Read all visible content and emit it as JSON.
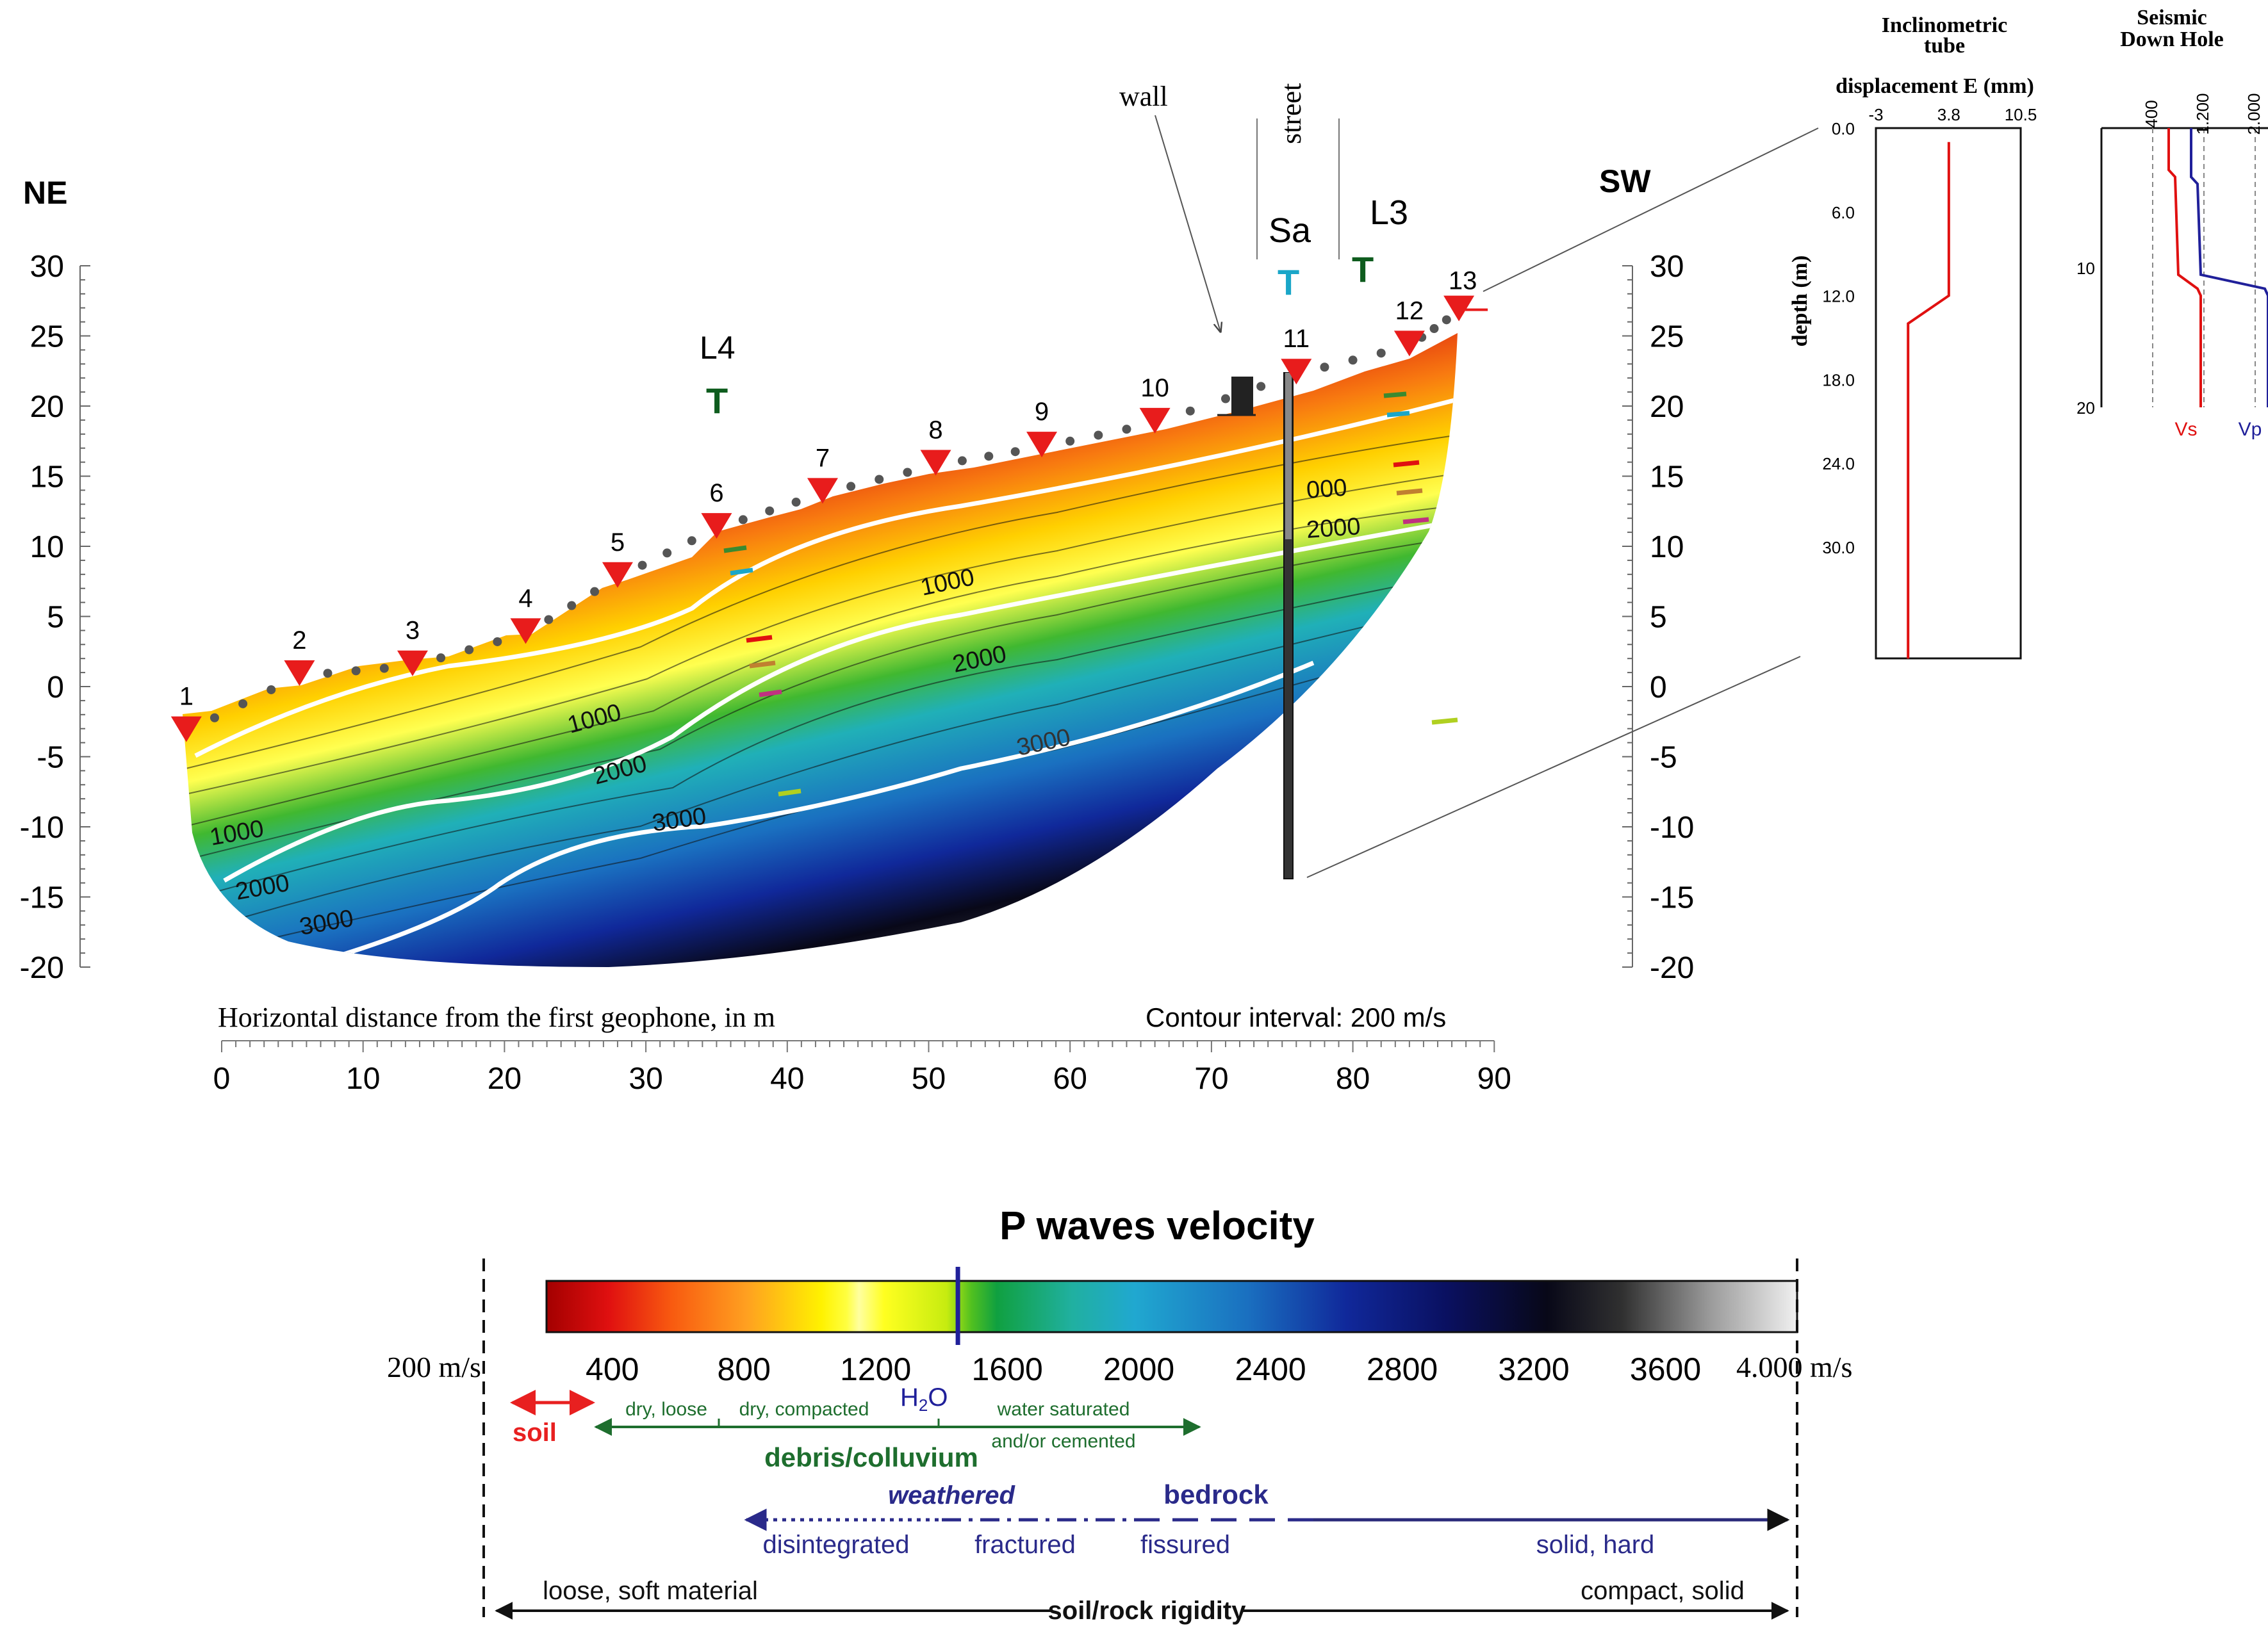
{
  "section": {
    "ne_label": "NE",
    "sw_label": "SW",
    "wall_label": "wall",
    "street_label": "street",
    "x_axis_title": "Horizontal distance from the first geophone, in m",
    "contour_note": "Contour interval: 200 m/s",
    "x_ticks": [
      "0",
      "10",
      "20",
      "30",
      "40",
      "50",
      "60",
      "70",
      "80",
      "90"
    ],
    "x_tick_values": [
      0,
      10,
      20,
      30,
      40,
      50,
      60,
      70,
      80,
      90
    ],
    "y_ticks": [
      "30",
      "25",
      "20",
      "15",
      "10",
      "5",
      "0",
      "-5",
      "-10",
      "-15",
      "-20"
    ],
    "y_tick_values": [
      30,
      25,
      20,
      15,
      10,
      5,
      0,
      -5,
      -10,
      -15,
      -20
    ],
    "x_range": [
      0,
      90
    ],
    "y_range": [
      -20,
      30
    ],
    "geophones": [
      {
        "label": "1",
        "x": -2.5,
        "y": -3.5
      },
      {
        "label": "2",
        "x": 5.5,
        "y": 0.5
      },
      {
        "label": "3",
        "x": 13.5,
        "y": 1.2
      },
      {
        "label": "4",
        "x": 21.5,
        "y": 3.5
      },
      {
        "label": "5",
        "x": 28,
        "y": 7.5
      },
      {
        "label": "6",
        "x": 35,
        "y": 11
      },
      {
        "label": "7",
        "x": 42.5,
        "y": 13.5
      },
      {
        "label": "8",
        "x": 50.5,
        "y": 15.5
      },
      {
        "label": "9",
        "x": 58,
        "y": 16.8
      },
      {
        "label": "10",
        "x": 66,
        "y": 18.5
      },
      {
        "label": "11",
        "x": 76,
        "y": 22
      },
      {
        "label": "12",
        "x": 84,
        "y": 24
      },
      {
        "label": "13",
        "x": 87.5,
        "y": 26.5
      }
    ],
    "trench_labels": [
      {
        "label": "L4",
        "marker": "T",
        "color": "#0e5c1e"
      },
      {
        "label": "Sa",
        "marker": "T",
        "color": "#1aa6c8"
      },
      {
        "label": "L3",
        "marker": "T",
        "color": "#0e5c1e"
      }
    ],
    "contour_labels": [
      "1000",
      "1000",
      "1000",
      "000",
      "2000",
      "2000",
      "2000",
      "3000",
      "3000",
      "2000",
      "3000"
    ]
  },
  "inclinometer": {
    "title_line1": "Inclinometric",
    "title_line2": "tube",
    "axis_title": "displacement E (mm)",
    "x_ticks": [
      "-3",
      "3.8",
      "10.5"
    ],
    "depth_label": "depth (m)",
    "depth_ticks": [
      "0.0",
      "6.0",
      "12.0",
      "18.0",
      "24.0",
      "30.0"
    ],
    "profile": [
      {
        "disp": 3.8,
        "depth": 1
      },
      {
        "disp": 3.8,
        "depth": 12
      },
      {
        "disp": 0,
        "depth": 14
      },
      {
        "disp": 0,
        "depth": 38
      }
    ]
  },
  "downhole": {
    "title_line1": "Seismic",
    "title_line2": "Down Hole",
    "x_ticks": [
      "400",
      "1.200",
      "2.000"
    ],
    "depth_ticks": [
      "10",
      "20"
    ],
    "vs_label": "Vs",
    "vp_label": "Vp",
    "vs_color": "#e01010",
    "vp_color": "#20209a",
    "vs_profile": [
      {
        "v": 650,
        "depth": 0
      },
      {
        "v": 650,
        "depth": 3
      },
      {
        "v": 750,
        "depth": 3.5
      },
      {
        "v": 800,
        "depth": 10.5
      },
      {
        "v": 1100,
        "depth": 11.5
      },
      {
        "v": 1150,
        "depth": 12
      },
      {
        "v": 1150,
        "depth": 20
      }
    ],
    "vp_profile": [
      {
        "v": 1000,
        "depth": 0
      },
      {
        "v": 1000,
        "depth": 3.5
      },
      {
        "v": 1100,
        "depth": 4
      },
      {
        "v": 1150,
        "depth": 10.5
      },
      {
        "v": 2150,
        "depth": 11.5
      },
      {
        "v": 2200,
        "depth": 12
      },
      {
        "v": 2200,
        "depth": 20
      }
    ]
  },
  "legend": {
    "title": "P waves velocity",
    "min_label": "200 m/s",
    "max_label": "4.000 m/s",
    "ticks": [
      "400",
      "800",
      "1200",
      "1600",
      "2000",
      "2400",
      "2800",
      "3200",
      "3600"
    ],
    "tick_values": [
      400,
      800,
      1200,
      1600,
      2000,
      2400,
      2800,
      3200,
      3600
    ],
    "velocity_range": [
      200,
      4000
    ],
    "water_velocity": 1450,
    "water_label_main": "H",
    "water_label_sub": "2",
    "water_label_end": "O",
    "soil": "soil",
    "dry_loose": "dry, loose",
    "dry_compacted": "dry, compacted",
    "water_saturated": "water saturated",
    "cemented": "and/or cemented",
    "debris": "debris/colluvium",
    "weathered": "weathered",
    "bedrock": "bedrock",
    "disintegrated": "disintegrated",
    "fractured": "fractured",
    "fissured": "fissured",
    "solid_hard": "solid, hard",
    "loose_soft": "loose, soft material",
    "compact_solid": "compact, solid",
    "rigidity": "soil/rock rigidity",
    "soil_color": "#e82020",
    "debris_color": "#1e6e2e",
    "bedrock_color": "#2a2a8a"
  }
}
